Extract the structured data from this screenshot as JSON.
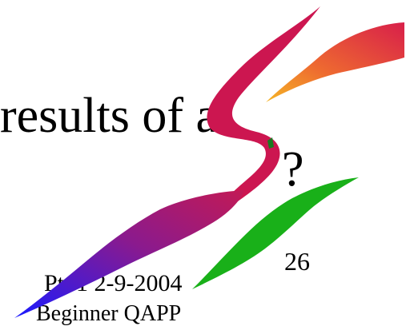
{
  "slide": {
    "title_line_1": "results of a",
    "title_line_2": "?",
    "page_number": "26",
    "footer_line_1": "Pt. 1 2-9-2004",
    "footer_line_2": "Beginner QAPP"
  }
}
